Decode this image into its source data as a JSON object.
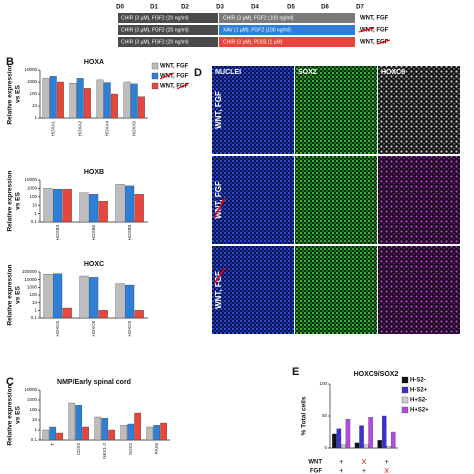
{
  "protocol": {
    "days": [
      "D0",
      "D1",
      "D2",
      "D3",
      "D4",
      "D5",
      "D6",
      "D7"
    ],
    "rows": [
      {
        "segments": [
          "CHIR (3 µM), FGF2 (20 ng/ml)",
          "CHIR (3 µM), FGF2 (100 ng/ml)"
        ],
        "label": "WNT, FGF"
      },
      {
        "segments": [
          "CHIR (3 µM), FGF2 (20 ng/ml)",
          "XAV (1 µM), FGF2 (100 ng/ml)"
        ],
        "label": "WNT, FGF"
      },
      {
        "segments": [
          "CHIR (3 µM), FGF2 (20 ng/ml)",
          "CHIR (3 µM), PD03 (1 µM)"
        ],
        "label": "WNT, FGF"
      }
    ]
  },
  "chart_data": [
    {
      "type": "bar",
      "panel": "B",
      "title": "HOXA",
      "ylabel": [
        "Relative expression",
        "vs ES"
      ],
      "log": true,
      "categories": [
        "HOXA1",
        "HOXA2",
        "HOXA4",
        "HOXA5"
      ],
      "ylim": [
        1,
        10000
      ],
      "yticks": [
        1,
        10,
        100,
        1000,
        10000
      ],
      "legend": "right",
      "series": [
        {
          "name": "WNT, FGF",
          "color": "#bdbdbd",
          "values": [
            2000,
            800,
            1500,
            1000
          ]
        },
        {
          "name": "WNT, FGF",
          "color": "#2f7fd8",
          "values": [
            3000,
            2000,
            900,
            700
          ]
        },
        {
          "name": "WNT, FGF",
          "color": "#e8453c",
          "values": [
            1000,
            300,
            100,
            60
          ]
        }
      ]
    },
    {
      "type": "bar",
      "title": "HOXB",
      "ylabel": [
        "Relative expression",
        "vs ES"
      ],
      "log": true,
      "categories": [
        "HOXB3",
        "HOXB6",
        "HOXB8"
      ],
      "ylim": [
        0.1,
        10000
      ],
      "yticks": [
        0.1,
        1,
        10,
        100,
        1000,
        10000
      ],
      "series": [
        {
          "color": "#bdbdbd",
          "values": [
            1000,
            300,
            3000
          ]
        },
        {
          "color": "#2f7fd8",
          "values": [
            800,
            200,
            2000
          ]
        },
        {
          "color": "#e8453c",
          "values": [
            800,
            30,
            200
          ]
        }
      ]
    },
    {
      "type": "bar",
      "title": "HOXC",
      "ylabel": [
        "Relative expression",
        "vs ES"
      ],
      "log": true,
      "categories": [
        "HOXC6",
        "HOXC8",
        "HOXC9"
      ],
      "ylim": [
        0.1,
        100000
      ],
      "yticks": [
        0.1,
        1,
        10,
        100,
        1000,
        10000,
        100000
      ],
      "series": [
        {
          "color": "#bdbdbd",
          "values": [
            50000,
            30000,
            3000
          ]
        },
        {
          "color": "#2f7fd8",
          "values": [
            60000,
            20000,
            2000
          ]
        },
        {
          "color": "#e8453c",
          "values": [
            2,
            1,
            1
          ]
        }
      ]
    },
    {
      "type": "bar",
      "panel": "C",
      "title": "NMP/Early spinal cord",
      "ylabel": [
        "Relative expression",
        "vs ES"
      ],
      "log": true,
      "categories": [
        "T",
        "CDX2",
        "NKX1-2",
        "SOX2",
        "PAX6"
      ],
      "ylim": [
        0.1,
        10000
      ],
      "yticks": [
        0.1,
        1,
        10,
        100,
        1000,
        10000
      ],
      "series": [
        {
          "color": "#bdbdbd",
          "values": [
            1,
            500,
            20,
            3,
            2
          ]
        },
        {
          "color": "#2f7fd8",
          "values": [
            2,
            300,
            15,
            4,
            3
          ]
        },
        {
          "color": "#e8453c",
          "values": [
            0.5,
            2,
            1,
            50,
            5
          ]
        }
      ]
    },
    {
      "type": "bar",
      "panel": "E",
      "title": "HOXC9/SOX2",
      "ylabel": [
        "% Total cells"
      ],
      "log": false,
      "categories": [
        null,
        null,
        null
      ],
      "ylim": [
        0,
        100
      ],
      "yticks": [
        0,
        50,
        100
      ],
      "legend": "right",
      "conditions": [
        {
          "name": "WNT",
          "marks": [
            "+",
            "X",
            "+"
          ]
        },
        {
          "name": "FGF",
          "marks": [
            "+",
            "+",
            "X"
          ]
        }
      ],
      "series": [
        {
          "name": "H-S2-",
          "color": "#111111",
          "values": [
            22,
            8,
            12
          ]
        },
        {
          "name": "H-S2+",
          "color": "#3b2fd6",
          "values": [
            30,
            35,
            50
          ]
        },
        {
          "name": "H+S2-",
          "color": "#cccccc",
          "values": [
            5,
            5,
            3
          ]
        },
        {
          "name": "H+S2+",
          "color": "#b44be0",
          "values": [
            45,
            48,
            25
          ]
        }
      ]
    }
  ],
  "panel_d": {
    "panel": "D",
    "columns": [
      "NUCLEI",
      "SOX2",
      "HOXC9"
    ],
    "rows": [
      "WNT, FGF",
      "WNT, FGF",
      "WNT, FGF"
    ]
  }
}
